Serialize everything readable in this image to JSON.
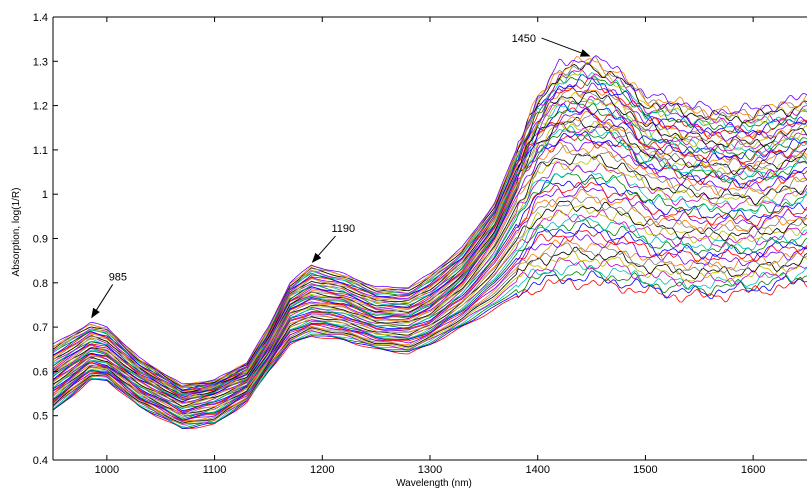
{
  "chart_data": {
    "type": "line",
    "title": "",
    "xlabel": "Wavelength (nm)",
    "ylabel": "Absorption, log(1/R)",
    "xlim": [
      950,
      1650
    ],
    "ylim": [
      0.4,
      1.4
    ],
    "xticks": [
      1000,
      1100,
      1200,
      1300,
      1400,
      1500,
      1600
    ],
    "xtick_labels": [
      "1000",
      "1100",
      "1200",
      "1300",
      "1400",
      "1500",
      "1600"
    ],
    "yticks": [
      0.4,
      0.5,
      0.6,
      0.7,
      0.8,
      0.9,
      1.0,
      1.1,
      1.2,
      1.3,
      1.4
    ],
    "ytick_labels": [
      "0.4",
      "0.5",
      "0.6",
      "0.7",
      "0.8",
      "0.9",
      "1",
      "1.1",
      "1.2",
      "1.3",
      "1.4"
    ],
    "grid": false,
    "legend": "none",
    "series_count": 60,
    "representative_spectra": {
      "x": [
        950,
        985,
        1000,
        1030,
        1070,
        1100,
        1130,
        1150,
        1170,
        1190,
        1220,
        1250,
        1280,
        1300,
        1330,
        1360,
        1380,
        1400,
        1420,
        1450,
        1480,
        1500,
        1530,
        1560,
        1600,
        1650
      ],
      "max": [
        0.66,
        0.71,
        0.7,
        0.63,
        0.57,
        0.58,
        0.62,
        0.7,
        0.8,
        0.84,
        0.82,
        0.79,
        0.79,
        0.82,
        0.88,
        0.98,
        1.1,
        1.22,
        1.29,
        1.31,
        1.27,
        1.22,
        1.21,
        1.19,
        1.19,
        1.22
      ],
      "mean": [
        0.58,
        0.64,
        0.63,
        0.58,
        0.53,
        0.55,
        0.58,
        0.65,
        0.74,
        0.76,
        0.75,
        0.72,
        0.72,
        0.74,
        0.8,
        0.9,
        1.0,
        1.09,
        1.12,
        1.12,
        1.1,
        1.06,
        1.04,
        1.03,
        1.02,
        1.05
      ],
      "min": [
        0.51,
        0.58,
        0.58,
        0.52,
        0.47,
        0.48,
        0.53,
        0.6,
        0.66,
        0.68,
        0.67,
        0.65,
        0.64,
        0.66,
        0.7,
        0.74,
        0.77,
        0.79,
        0.8,
        0.8,
        0.79,
        0.78,
        0.77,
        0.77,
        0.78,
        0.8
      ]
    },
    "annotations": [
      {
        "text": "985",
        "x": 985,
        "y": 0.715
      },
      {
        "text": "1190",
        "x": 1190,
        "y": 0.84
      },
      {
        "text": "1450",
        "x": 1450,
        "y": 1.305
      }
    ],
    "colors": [
      "#ff0000",
      "#0000ff",
      "#008000",
      "#00bfbf",
      "#bf00bf",
      "#bfbf00",
      "#000000",
      "#7f7f7f",
      "#ff7f00",
      "#6a00ff"
    ]
  }
}
